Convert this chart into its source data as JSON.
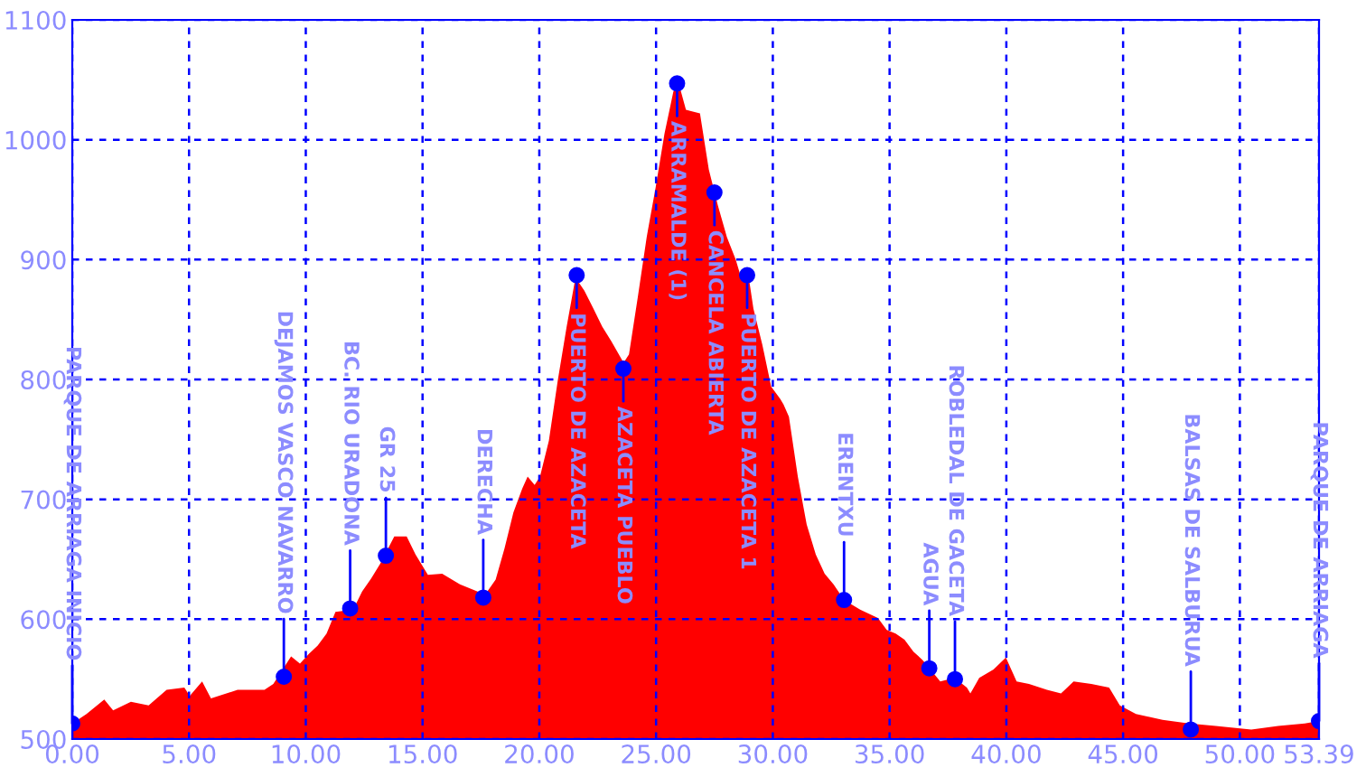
{
  "chart_data": {
    "type": "area",
    "color": "#ff0000",
    "series": [
      {
        "x": [
          0,
          0.61,
          1.37,
          1.75,
          2.51,
          3.27,
          4.04,
          4.8,
          5.03,
          5.56,
          5.94,
          7.08,
          8.23,
          8.61,
          9.37,
          9.75,
          10.13,
          10.51,
          10.89,
          11.27,
          12.03,
          12.41,
          12.8,
          13.18,
          13.79,
          14.32,
          14.7,
          15.23,
          15.84,
          16.6,
          17.36,
          17.59,
          18.13,
          18.51,
          18.89,
          19.27,
          19.5,
          19.8,
          20.03,
          20.41,
          20.79,
          21.17,
          21.55,
          21.93,
          22.32,
          22.7,
          23.08,
          23.61,
          23.84,
          24.22,
          24.6,
          24.98,
          25.36,
          25.74,
          25.97,
          26.28,
          26.88,
          27.26,
          27.65,
          28.03,
          28.41,
          28.64,
          28.94,
          29.17,
          29.55,
          29.93,
          30.31,
          30.46,
          30.69,
          31.07,
          31.45,
          31.84,
          32.22,
          32.6,
          33.05,
          33.74,
          34.5,
          34.88,
          35.26,
          35.64,
          36.02,
          36.41,
          36.71,
          37.17,
          37.78,
          38.31,
          38.46,
          38.84,
          39.45,
          39.98,
          40.44,
          40.97,
          41.74,
          42.34,
          42.88,
          43.64,
          44.4,
          44.86,
          45.55,
          46.69,
          47.83,
          48.97,
          50.49,
          51.64,
          52.78,
          53.39
        ],
        "values": [
          513,
          521,
          533,
          524,
          531,
          528,
          541,
          543,
          536,
          548,
          534,
          541,
          541,
          546,
          569,
          563,
          571,
          578,
          588,
          606,
          608,
          623,
          634,
          646,
          669,
          669,
          654,
          637,
          638,
          629,
          623,
          618,
          633,
          659,
          689,
          709,
          719,
          712,
          719,
          749,
          799,
          844,
          885,
          874,
          859,
          844,
          832,
          814,
          821,
          869,
          919,
          960,
          1005,
          1040,
          1047,
          1025,
          1022,
          975,
          945,
          919,
          900,
          885,
          889,
          859,
          829,
          794,
          784,
          779,
          769,
          719,
          679,
          654,
          638,
          629,
          616,
          608,
          601,
          591,
          588,
          583,
          573,
          566,
          559,
          548,
          551,
          543,
          538,
          551,
          558,
          568,
          548,
          546,
          541,
          538,
          548,
          546,
          543,
          528,
          521,
          516,
          513,
          511,
          508,
          511,
          513,
          515
        ]
      },
      {
        "type": "scatter",
        "color": "#0000ff",
        "marker": "circle",
        "x": [
          0,
          9.06,
          11.9,
          13.43,
          17.6,
          21.6,
          23.6,
          25.9,
          27.5,
          28.9,
          33.05,
          36.7,
          37.8,
          47.9,
          53.39
        ],
        "values": [
          513,
          552,
          609,
          653,
          618,
          887,
          809,
          1047,
          956,
          887,
          616,
          559,
          550,
          508,
          515
        ]
      }
    ],
    "annotations": [
      {
        "text": "PARQUE DE ARRIAGA INICIO",
        "x": 0,
        "y": 513
      },
      {
        "text": "DEJAMOS VASCO NAVARRO",
        "x": 9.06,
        "y": 552
      },
      {
        "text": "BC. RIO URADONA",
        "x": 11.9,
        "y": 609
      },
      {
        "text": "GR 25",
        "x": 13.43,
        "y": 653
      },
      {
        "text": "DERECHA",
        "x": 17.6,
        "y": 618
      },
      {
        "text": "PUERTO DE AZACETA",
        "x": 21.6,
        "y": 887
      },
      {
        "text": "AZACETA PUEBLO",
        "x": 23.6,
        "y": 809
      },
      {
        "text": "ARRAMALDE (1)",
        "x": 25.9,
        "y": 1047
      },
      {
        "text": "CANCELA ABIERTA",
        "x": 27.5,
        "y": 956
      },
      {
        "text": "PUERTO DE AZACETA 1",
        "x": 28.9,
        "y": 887
      },
      {
        "text": "ERENTXU",
        "x": 33.05,
        "y": 616
      },
      {
        "text": "AGUA",
        "x": 36.7,
        "y": 559
      },
      {
        "text": "ROBLEDAL DE GACETA",
        "x": 37.8,
        "y": 550
      },
      {
        "text": "BALSAS DE SALBURUA",
        "x": 47.9,
        "y": 508
      },
      {
        "text": "PARQUE DE ARRIAGA",
        "x": 53.39,
        "y": 515
      }
    ],
    "xlim": [
      0,
      53.39
    ],
    "ylim": [
      500,
      1100
    ],
    "xticks": [
      {
        "value": 0,
        "label": "0.00"
      },
      {
        "value": 5,
        "label": "5.00"
      },
      {
        "value": 10,
        "label": "10.00"
      },
      {
        "value": 15,
        "label": "15.00"
      },
      {
        "value": 20,
        "label": "20.00"
      },
      {
        "value": 25,
        "label": "25.00"
      },
      {
        "value": 30,
        "label": "30.00"
      },
      {
        "value": 35,
        "label": "35.00"
      },
      {
        "value": 40,
        "label": "40.00"
      },
      {
        "value": 45,
        "label": "45.00"
      },
      {
        "value": 50,
        "label": "50.00"
      },
      {
        "value": 53.39,
        "label": "53.39"
      }
    ],
    "yticks": [
      500,
      600,
      700,
      800,
      900,
      1000,
      1100
    ],
    "grid": true,
    "line_style": "dashed"
  }
}
